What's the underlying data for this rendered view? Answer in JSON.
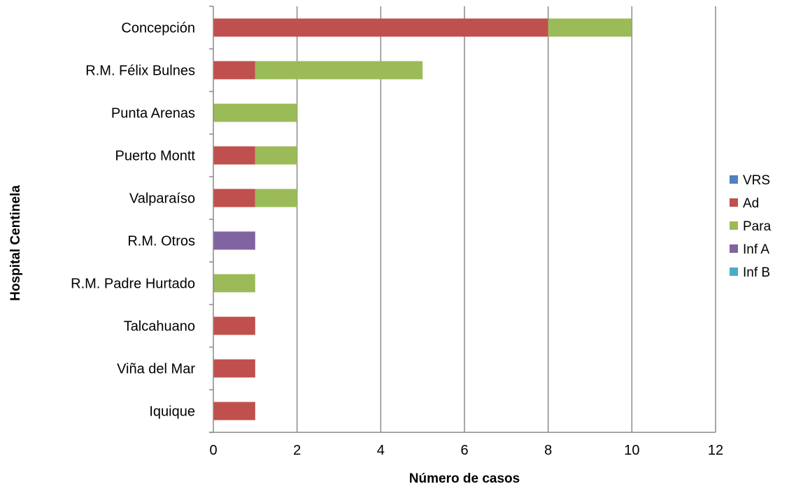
{
  "chart_data": {
    "type": "bar",
    "orientation": "horizontal",
    "stacked": true,
    "title": "",
    "xlabel": "Número de casos",
    "ylabel": "Hospital Centinela",
    "xlim": [
      0,
      12
    ],
    "x_ticks": [
      "0",
      "2",
      "4",
      "6",
      "8",
      "10",
      "12"
    ],
    "grid": "vertical",
    "legend_position": "right",
    "categories": [
      "Concepción",
      "R.M. Félix Bulnes",
      "Punta Arenas",
      "Puerto Montt",
      "Valparaíso",
      "R.M. Otros",
      "R.M.  Padre Hurtado",
      "Talcahuano",
      "Viña del Mar",
      "Iquique"
    ],
    "series": [
      {
        "name": "VRS",
        "color": "#4F81BD",
        "values": [
          0,
          0,
          0,
          0,
          0,
          0,
          0,
          0,
          0,
          0
        ]
      },
      {
        "name": "Ad",
        "color": "#C0504D",
        "values": [
          8,
          1,
          0,
          1,
          1,
          0,
          0,
          1,
          1,
          1
        ]
      },
      {
        "name": "Para",
        "color": "#9BBB59",
        "values": [
          2,
          4,
          2,
          1,
          1,
          0,
          1,
          0,
          0,
          0
        ]
      },
      {
        "name": "Inf A",
        "color": "#8064A2",
        "values": [
          0,
          0,
          0,
          0,
          0,
          1,
          0,
          0,
          0,
          0
        ]
      },
      {
        "name": "Inf B",
        "color": "#4BACC6",
        "values": [
          0,
          0,
          0,
          0,
          0,
          0,
          0,
          0,
          0,
          0
        ]
      }
    ]
  }
}
